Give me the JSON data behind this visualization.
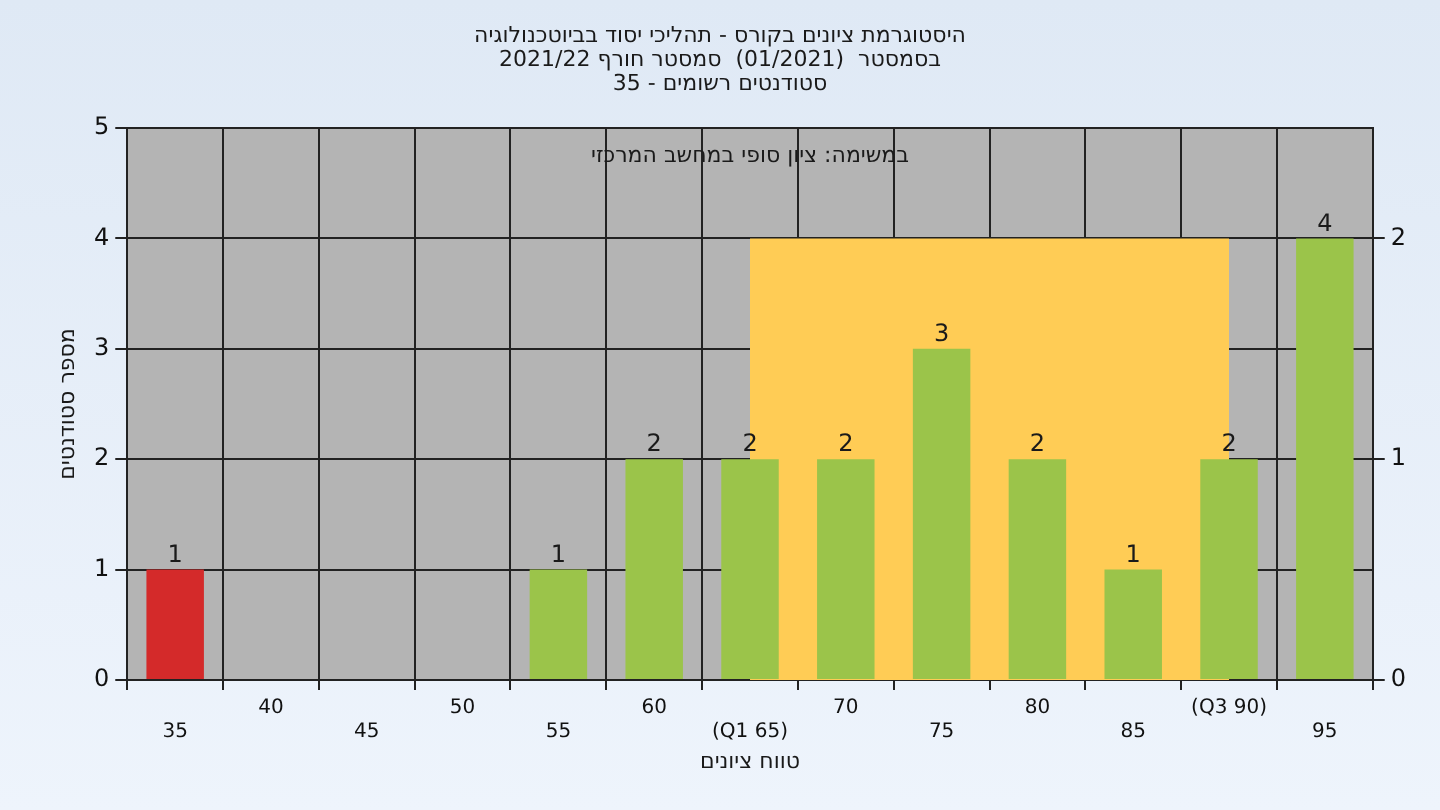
{
  "chart_data": {
    "type": "bar",
    "title": "היסטוגרמת ציונים בקורס - תהליכי יסוד בביוטכנולוגיה",
    "subtitle": "בסמסטר  (01/2021)  סמסטר חורף 2021/22\nסטודנטים רשומים - 35",
    "xlabel": "טווח ציונים",
    "ylabel": "מספר סטודנטים",
    "annotations": [
      "במשימה: ציון סופי במחשב המרכזי"
    ],
    "categories": [
      "35",
      "40",
      "45",
      "50",
      "55",
      "60",
      "(Q1 65)",
      "70",
      "75",
      "80",
      "85",
      "(Q3 90)",
      "95"
    ],
    "values": [
      1,
      0,
      0,
      0,
      1,
      2,
      2,
      2,
      3,
      2,
      1,
      2,
      4
    ],
    "value_labels": [
      "1",
      null,
      null,
      null,
      "1",
      "2",
      "2",
      "2",
      "3",
      "2",
      "1",
      "2",
      "4"
    ],
    "colors": [
      "#d42a2a",
      "#9bc44a",
      "#9bc44a",
      "#9bc44a",
      "#9bc44a",
      "#9bc44a",
      "#9bc44a",
      "#9bc44a",
      "#9bc44a",
      "#9bc44a",
      "#9bc44a",
      "#9bc44a",
      "#9bc44a"
    ],
    "ylim": [
      0,
      5
    ],
    "yticks": [
      0,
      1,
      2,
      3,
      4,
      5
    ],
    "y2lim": [
      0,
      2.5
    ],
    "y2ticks": [
      0,
      1,
      2
    ],
    "bands": [
      {
        "axis": "x",
        "from": "(Q1 65)",
        "to": "(Q3 90)",
        "color": "#ffcc55"
      }
    ],
    "grid": true,
    "legend": false
  }
}
